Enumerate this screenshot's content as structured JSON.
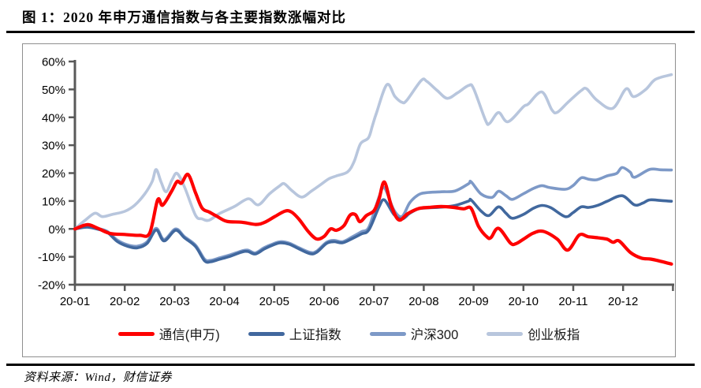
{
  "figure": {
    "title": "图 1：2020 年申万通信指数与各主要指数涨幅对比",
    "source": "资料来源：Wind，财信证券"
  },
  "chart_data": {
    "type": "line",
    "title": "2020年申万通信指数与各主要指数涨幅对比",
    "xlabel": "",
    "ylabel": "",
    "grid": false,
    "legend_position": "bottom",
    "axis_color": "#595959",
    "x_axis": {
      "min": 0,
      "max": 12,
      "tick_labels": [
        "20-01",
        "20-02",
        "20-03",
        "20-04",
        "20-05",
        "20-06",
        "20-07",
        "20-08",
        "20-09",
        "20-10",
        "20-11",
        "20-12"
      ]
    },
    "y_axis": {
      "min": -20,
      "max": 60,
      "unit": "%",
      "ticks": [
        60,
        50,
        40,
        30,
        20,
        10,
        0,
        -10,
        -20
      ],
      "tick_labels": [
        "60%",
        "50%",
        "40%",
        "30%",
        "20%",
        "10%",
        "0%",
        "-10%",
        "-20%"
      ]
    },
    "series": [
      {
        "name": "创业板指",
        "key": "chuangyeban",
        "color": "#b8c6dd",
        "width": 3.6,
        "points": [
          [
            0,
            0
          ],
          [
            0.2,
            3
          ],
          [
            0.4,
            5.6
          ],
          [
            0.55,
            4.4
          ],
          [
            0.75,
            5.2
          ],
          [
            1.0,
            6.3
          ],
          [
            1.2,
            8.5
          ],
          [
            1.4,
            12.5
          ],
          [
            1.55,
            17
          ],
          [
            1.63,
            21.3
          ],
          [
            1.73,
            16.8
          ],
          [
            1.83,
            13.3
          ],
          [
            1.95,
            17.6
          ],
          [
            2.05,
            19.9
          ],
          [
            2.2,
            15
          ],
          [
            2.42,
            4.9
          ],
          [
            2.55,
            3.6
          ],
          [
            2.69,
            3.1
          ],
          [
            2.9,
            5.5
          ],
          [
            3.2,
            8
          ],
          [
            3.48,
            10.8
          ],
          [
            3.68,
            8.6
          ],
          [
            3.9,
            12.5
          ],
          [
            4.1,
            15.3
          ],
          [
            4.2,
            16.2
          ],
          [
            4.35,
            13.8
          ],
          [
            4.55,
            11.4
          ],
          [
            4.75,
            13.6
          ],
          [
            4.95,
            16.1
          ],
          [
            5.1,
            18
          ],
          [
            5.25,
            19
          ],
          [
            5.47,
            20.4
          ],
          [
            5.6,
            24
          ],
          [
            5.73,
            30.5
          ],
          [
            5.89,
            32.6
          ],
          [
            5.97,
            37
          ],
          [
            6.05,
            41.5
          ],
          [
            6.26,
            51.7
          ],
          [
            6.42,
            47.5
          ],
          [
            6.56,
            45.4
          ],
          [
            6.66,
            46.1
          ],
          [
            6.95,
            53.2
          ],
          [
            7.06,
            52.9
          ],
          [
            7.27,
            49.6
          ],
          [
            7.47,
            46.8
          ],
          [
            7.68,
            48.8
          ],
          [
            7.9,
            51.4
          ],
          [
            8.0,
            50.3
          ],
          [
            8.24,
            38.9
          ],
          [
            8.32,
            37.8
          ],
          [
            8.5,
            41.7
          ],
          [
            8.69,
            38.4
          ],
          [
            9.0,
            43.8
          ],
          [
            9.1,
            44.8
          ],
          [
            9.37,
            49.1
          ],
          [
            9.57,
            42.7
          ],
          [
            9.68,
            41.8
          ],
          [
            9.9,
            45.5
          ],
          [
            10.16,
            49.6
          ],
          [
            10.27,
            50.2
          ],
          [
            10.47,
            46.2
          ],
          [
            10.79,
            43.2
          ],
          [
            11.06,
            50.2
          ],
          [
            11.21,
            47.4
          ],
          [
            11.45,
            49.9
          ],
          [
            11.65,
            53.6
          ],
          [
            11.97,
            55.3
          ]
        ]
      },
      {
        "name": "沪深300",
        "key": "hushen300",
        "color": "#7d99c7",
        "width": 3.6,
        "points": [
          [
            0,
            0
          ],
          [
            0.25,
            0.8
          ],
          [
            0.5,
            0
          ],
          [
            0.65,
            -0.9
          ],
          [
            0.85,
            -4
          ],
          [
            1.05,
            -5.7
          ],
          [
            1.25,
            -6.2
          ],
          [
            1.45,
            -4.6
          ],
          [
            1.63,
            0.2
          ],
          [
            1.79,
            -3.8
          ],
          [
            2.02,
            0
          ],
          [
            2.2,
            -2.8
          ],
          [
            2.42,
            -5.8
          ],
          [
            2.6,
            -10.8
          ],
          [
            2.72,
            -11.3
          ],
          [
            2.9,
            -10.4
          ],
          [
            3.1,
            -9.4
          ],
          [
            3.35,
            -7.9
          ],
          [
            3.47,
            -7.6
          ],
          [
            3.62,
            -8.6
          ],
          [
            3.8,
            -6.7
          ],
          [
            3.97,
            -5.4
          ],
          [
            4.12,
            -4.6
          ],
          [
            4.3,
            -5.1
          ],
          [
            4.5,
            -6.8
          ],
          [
            4.72,
            -8.4
          ],
          [
            4.85,
            -8
          ],
          [
            5.05,
            -4.8
          ],
          [
            5.2,
            -4.1
          ],
          [
            5.37,
            -4.6
          ],
          [
            5.55,
            -3
          ],
          [
            5.75,
            -1
          ],
          [
            5.9,
            0.7
          ],
          [
            6.1,
            11.3
          ],
          [
            6.21,
            14.7
          ],
          [
            6.4,
            6.8
          ],
          [
            6.56,
            4.4
          ],
          [
            6.72,
            9.4
          ],
          [
            6.89,
            12.2
          ],
          [
            7.05,
            13
          ],
          [
            7.35,
            13.3
          ],
          [
            7.63,
            13.6
          ],
          [
            7.9,
            16.2
          ],
          [
            7.95,
            16.9
          ],
          [
            8.15,
            12.5
          ],
          [
            8.37,
            11.3
          ],
          [
            8.5,
            13.5
          ],
          [
            8.65,
            11.9
          ],
          [
            8.78,
            10.6
          ],
          [
            9.0,
            12.6
          ],
          [
            9.2,
            14.5
          ],
          [
            9.37,
            15.5
          ],
          [
            9.53,
            14.8
          ],
          [
            9.84,
            14.2
          ],
          [
            10.0,
            15.6
          ],
          [
            10.16,
            18.3
          ],
          [
            10.31,
            17.8
          ],
          [
            10.47,
            17.6
          ],
          [
            10.68,
            19
          ],
          [
            10.87,
            19.9
          ],
          [
            10.98,
            22
          ],
          [
            11.14,
            20.4
          ],
          [
            11.23,
            18.5
          ],
          [
            11.53,
            21.3
          ],
          [
            11.75,
            21.2
          ],
          [
            11.97,
            21.1
          ]
        ]
      },
      {
        "name": "上证指数",
        "key": "shangzheng",
        "color": "#41689e",
        "width": 3.6,
        "points": [
          [
            0,
            0
          ],
          [
            0.25,
            0.6
          ],
          [
            0.5,
            -0.3
          ],
          [
            0.65,
            -1.2
          ],
          [
            0.85,
            -4.5
          ],
          [
            1.05,
            -6.2
          ],
          [
            1.25,
            -6.8
          ],
          [
            1.45,
            -5.2
          ],
          [
            1.63,
            -0.4
          ],
          [
            1.79,
            -4.3
          ],
          [
            2.02,
            -0.5
          ],
          [
            2.2,
            -3.2
          ],
          [
            2.42,
            -6.3
          ],
          [
            2.6,
            -11.4
          ],
          [
            2.72,
            -11.8
          ],
          [
            2.9,
            -10.9
          ],
          [
            3.1,
            -9.9
          ],
          [
            3.35,
            -8.3
          ],
          [
            3.47,
            -8.1
          ],
          [
            3.62,
            -9
          ],
          [
            3.8,
            -7.2
          ],
          [
            3.97,
            -5.8
          ],
          [
            4.12,
            -5
          ],
          [
            4.3,
            -5.5
          ],
          [
            4.5,
            -7.2
          ],
          [
            4.72,
            -8.9
          ],
          [
            4.85,
            -8.4
          ],
          [
            5.05,
            -5.2
          ],
          [
            5.2,
            -4.6
          ],
          [
            5.37,
            -5
          ],
          [
            5.55,
            -3.6
          ],
          [
            5.75,
            -1.8
          ],
          [
            5.9,
            -0.3
          ],
          [
            6.1,
            7.8
          ],
          [
            6.21,
            10.4
          ],
          [
            6.4,
            5.2
          ],
          [
            6.56,
            3.5
          ],
          [
            6.72,
            5.6
          ],
          [
            6.89,
            7.2
          ],
          [
            7.05,
            7.5
          ],
          [
            7.35,
            7.8
          ],
          [
            7.63,
            8.4
          ],
          [
            7.9,
            10
          ],
          [
            7.95,
            10.4
          ],
          [
            8.15,
            6.4
          ],
          [
            8.31,
            4.8
          ],
          [
            8.5,
            7.9
          ],
          [
            8.65,
            5.6
          ],
          [
            8.78,
            3.8
          ],
          [
            9.0,
            5.2
          ],
          [
            9.2,
            7.4
          ],
          [
            9.37,
            8.4
          ],
          [
            9.55,
            7.6
          ],
          [
            9.84,
            4.4
          ],
          [
            10.0,
            5.9
          ],
          [
            10.16,
            7.9
          ],
          [
            10.31,
            7.7
          ],
          [
            10.5,
            8.5
          ],
          [
            10.68,
            9.9
          ],
          [
            10.98,
            11.9
          ],
          [
            11.23,
            8.6
          ],
          [
            11.4,
            9.3
          ],
          [
            11.53,
            10.4
          ],
          [
            11.75,
            10.2
          ],
          [
            11.97,
            9.9
          ]
        ]
      },
      {
        "name": "通信(申万)",
        "key": "tongxin-shenwan",
        "color": "#fe0000",
        "width": 4.2,
        "points": [
          [
            0,
            0
          ],
          [
            0.25,
            1.5
          ],
          [
            0.45,
            0.3
          ],
          [
            0.7,
            -1.6
          ],
          [
            1.0,
            -2
          ],
          [
            1.3,
            -2.3
          ],
          [
            1.5,
            -1.5
          ],
          [
            1.66,
            10.4
          ],
          [
            1.76,
            8.5
          ],
          [
            1.94,
            13.5
          ],
          [
            2.05,
            17
          ],
          [
            2.14,
            16.4
          ],
          [
            2.27,
            19.5
          ],
          [
            2.42,
            13
          ],
          [
            2.55,
            7.5
          ],
          [
            2.7,
            6
          ],
          [
            2.85,
            4.5
          ],
          [
            3.05,
            2.7
          ],
          [
            3.35,
            2.4
          ],
          [
            3.63,
            1.6
          ],
          [
            3.8,
            2.3
          ],
          [
            4.0,
            4.3
          ],
          [
            4.22,
            6.4
          ],
          [
            4.35,
            6
          ],
          [
            4.5,
            3.4
          ],
          [
            4.68,
            -0.9
          ],
          [
            4.85,
            -3.6
          ],
          [
            5.0,
            -2.7
          ],
          [
            5.13,
            0
          ],
          [
            5.25,
            -0.5
          ],
          [
            5.4,
            1.2
          ],
          [
            5.52,
            4.9
          ],
          [
            5.63,
            5.1
          ],
          [
            5.72,
            2.6
          ],
          [
            5.85,
            4.8
          ],
          [
            6.0,
            6.5
          ],
          [
            6.1,
            10.5
          ],
          [
            6.21,
            16.8
          ],
          [
            6.35,
            8.2
          ],
          [
            6.5,
            3.2
          ],
          [
            6.68,
            5.5
          ],
          [
            6.9,
            7.3
          ],
          [
            7.1,
            7.7
          ],
          [
            7.35,
            8
          ],
          [
            7.6,
            7.7
          ],
          [
            7.8,
            7.2
          ],
          [
            7.95,
            7.4
          ],
          [
            8.1,
            0.9
          ],
          [
            8.27,
            -2.9
          ],
          [
            8.35,
            -3.1
          ],
          [
            8.5,
            0.2
          ],
          [
            8.74,
            -5.1
          ],
          [
            8.85,
            -5.3
          ],
          [
            9.0,
            -3.7
          ],
          [
            9.2,
            -1.5
          ],
          [
            9.4,
            -0.9
          ],
          [
            9.68,
            -3.7
          ],
          [
            9.89,
            -7.6
          ],
          [
            10.12,
            -2.2
          ],
          [
            10.3,
            -2.8
          ],
          [
            10.5,
            -3.2
          ],
          [
            10.68,
            -3.7
          ],
          [
            10.8,
            -4.8
          ],
          [
            10.92,
            -4.3
          ],
          [
            11.15,
            -8.5
          ],
          [
            11.37,
            -10.5
          ],
          [
            11.55,
            -10.8
          ],
          [
            11.75,
            -11.6
          ],
          [
            11.97,
            -12.6
          ]
        ]
      }
    ],
    "legend_order": [
      "通信(申万)",
      "上证指数",
      "沪深300",
      "创业板指"
    ]
  }
}
